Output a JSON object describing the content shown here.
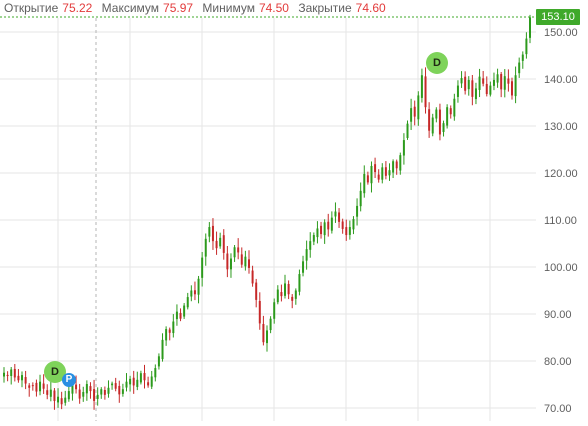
{
  "legend": {
    "open_label": "Открытие",
    "open_value": "75.22",
    "high_label": "Максимум",
    "high_value": "75.97",
    "low_label": "Минимум",
    "low_value": "74.50",
    "close_label": "Закрытие",
    "close_value": "74.60"
  },
  "last_price": "153.10",
  "markers": {
    "dividend_label": "D",
    "p_label": "P"
  },
  "colors": {
    "up": "#2c9a1c",
    "down": "#c62828",
    "grid": "#e6e6e6",
    "accent": "#3fa92a",
    "axis_text": "#5f5f5f"
  },
  "chart_data": {
    "type": "candlestick",
    "ylim": [
      68,
      155
    ],
    "y_ticks": [
      "70.00",
      "80.00",
      "90.00",
      "100.00",
      "110.00",
      "120.00",
      "130.00",
      "140.00",
      "150.00"
    ],
    "y_tick_values": [
      70,
      80,
      90,
      100,
      110,
      120,
      130,
      140,
      150
    ],
    "series": [
      {
        "values": [
          77.5,
          76.8,
          78.2,
          76.5,
          75.9,
          77.0,
          75.2,
          74.3,
          74.8,
          73.5,
          75.6,
          74.1,
          72.8,
          73.9,
          71.5,
          72.4,
          70.8,
          72.2,
          73.6,
          74.8,
          74.0,
          72.0,
          73.4,
          75.1,
          73.6,
          71.5,
          72.8,
          74.0,
          72.8,
          74.3,
          75.2,
          74.1,
          72.9,
          74.0,
          75.6,
          76.2,
          74.8,
          76.0,
          77.4,
          75.9,
          74.8,
          76.7,
          78.5,
          81.0,
          84.5,
          86.8,
          86.0,
          88.4,
          90.5,
          89.0,
          91.8,
          93.6,
          95.0,
          94.2,
          97.5,
          102.0,
          106.0,
          108.5,
          105.5,
          104.0,
          106.2,
          103.0,
          99.5,
          101.8,
          104.2,
          103.1,
          100.5,
          102.2,
          99.8,
          96.5,
          93.0,
          88.0,
          84.0,
          86.5,
          89.0,
          92.5,
          95.2,
          93.8,
          96.5,
          94.2,
          92.8,
          95.0,
          98.5,
          101.2,
          103.8,
          105.5,
          106.8,
          108.2,
          107.0,
          109.5,
          108.0,
          110.5,
          111.8,
          109.6,
          108.1,
          106.8,
          108.5,
          110.2,
          113.0,
          116.2,
          119.8,
          118.0,
          121.5,
          120.2,
          118.6,
          121.2,
          119.4,
          120.6,
          122.5,
          121.0,
          123.8,
          127.0,
          130.5,
          133.8,
          132.0,
          136.5,
          140.8,
          134.0,
          129.0,
          131.8,
          133.5,
          128.2,
          130.6,
          134.0,
          132.5,
          135.8,
          138.6,
          140.2,
          137.5,
          139.8,
          136.2,
          138.0,
          140.5,
          139.0,
          136.8,
          138.6,
          139.8,
          141.0,
          137.8,
          140.6,
          139.0,
          136.5,
          140.8,
          143.5,
          145.2,
          148.6,
          153.1
        ]
      }
    ]
  }
}
